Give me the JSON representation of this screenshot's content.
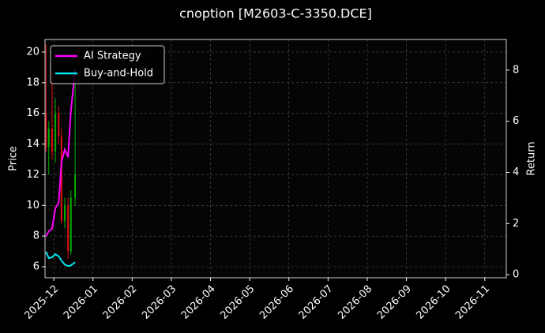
{
  "chart_data": {
    "type": "candlestick",
    "title": "cnoption [M2603-C-3350.DCE]",
    "y_label": "Price",
    "y2_label": "Return",
    "x": [
      2025.9,
      2025.906,
      2025.913,
      2025.92,
      2025.927,
      2025.933,
      2025.94,
      2025.947,
      2025.953,
      2025.962
    ],
    "open": [
      16,
      13.8,
      15,
      13.5,
      16,
      14.5,
      9,
      10,
      7,
      10.5
    ],
    "high": [
      20.5,
      15.5,
      18.8,
      17,
      16.5,
      15,
      10.5,
      10.5,
      11,
      18
    ],
    "low": [
      13.5,
      12,
      13,
      12.8,
      14,
      8.8,
      8.5,
      6.5,
      6.8,
      10
    ],
    "close": [
      13.8,
      15,
      13.5,
      16,
      14.5,
      9,
      10,
      7,
      10.5,
      12
    ],
    "up_color": "#00b000",
    "down_color": "#e01010",
    "series": [
      {
        "name": "AI Strategy",
        "color": "#ff00ff",
        "axis": "y2",
        "values": [
          1.5,
          1.7,
          1.8,
          2.6,
          2.8,
          4.4,
          4.9,
          4.6,
          6.4,
          8.0
        ]
      },
      {
        "name": "Buy-and-Hold",
        "color": "#00e5ee",
        "axis": "y2",
        "values": [
          0.9,
          0.65,
          0.68,
          0.8,
          0.72,
          0.55,
          0.4,
          0.34,
          0.36,
          0.49
        ]
      }
    ],
    "xlim": [
      2025.898,
      2026.879
    ],
    "xticks": [
      {
        "value": 2025.9167,
        "label": "2025-12"
      },
      {
        "value": 2026.0,
        "label": "2026-01"
      },
      {
        "value": 2026.0833,
        "label": "2026-02"
      },
      {
        "value": 2026.1667,
        "label": "2026-03"
      },
      {
        "value": 2026.25,
        "label": "2026-04"
      },
      {
        "value": 2026.3333,
        "label": "2026-05"
      },
      {
        "value": 2026.4167,
        "label": "2026-06"
      },
      {
        "value": 2026.5,
        "label": "2026-07"
      },
      {
        "value": 2026.5833,
        "label": "2026-08"
      },
      {
        "value": 2026.6667,
        "label": "2026-09"
      },
      {
        "value": 2026.75,
        "label": "2026-10"
      },
      {
        "value": 2026.8333,
        "label": "2026-11"
      }
    ],
    "ylim": [
      5.28,
      20.82
    ],
    "yticks": [
      6,
      8,
      10,
      12,
      14,
      16,
      18,
      20
    ],
    "y2lim": [
      -0.12,
      9.2
    ],
    "y2ticks": [
      0,
      2,
      4,
      6,
      8
    ],
    "grid": true,
    "legend": "upper-left"
  }
}
